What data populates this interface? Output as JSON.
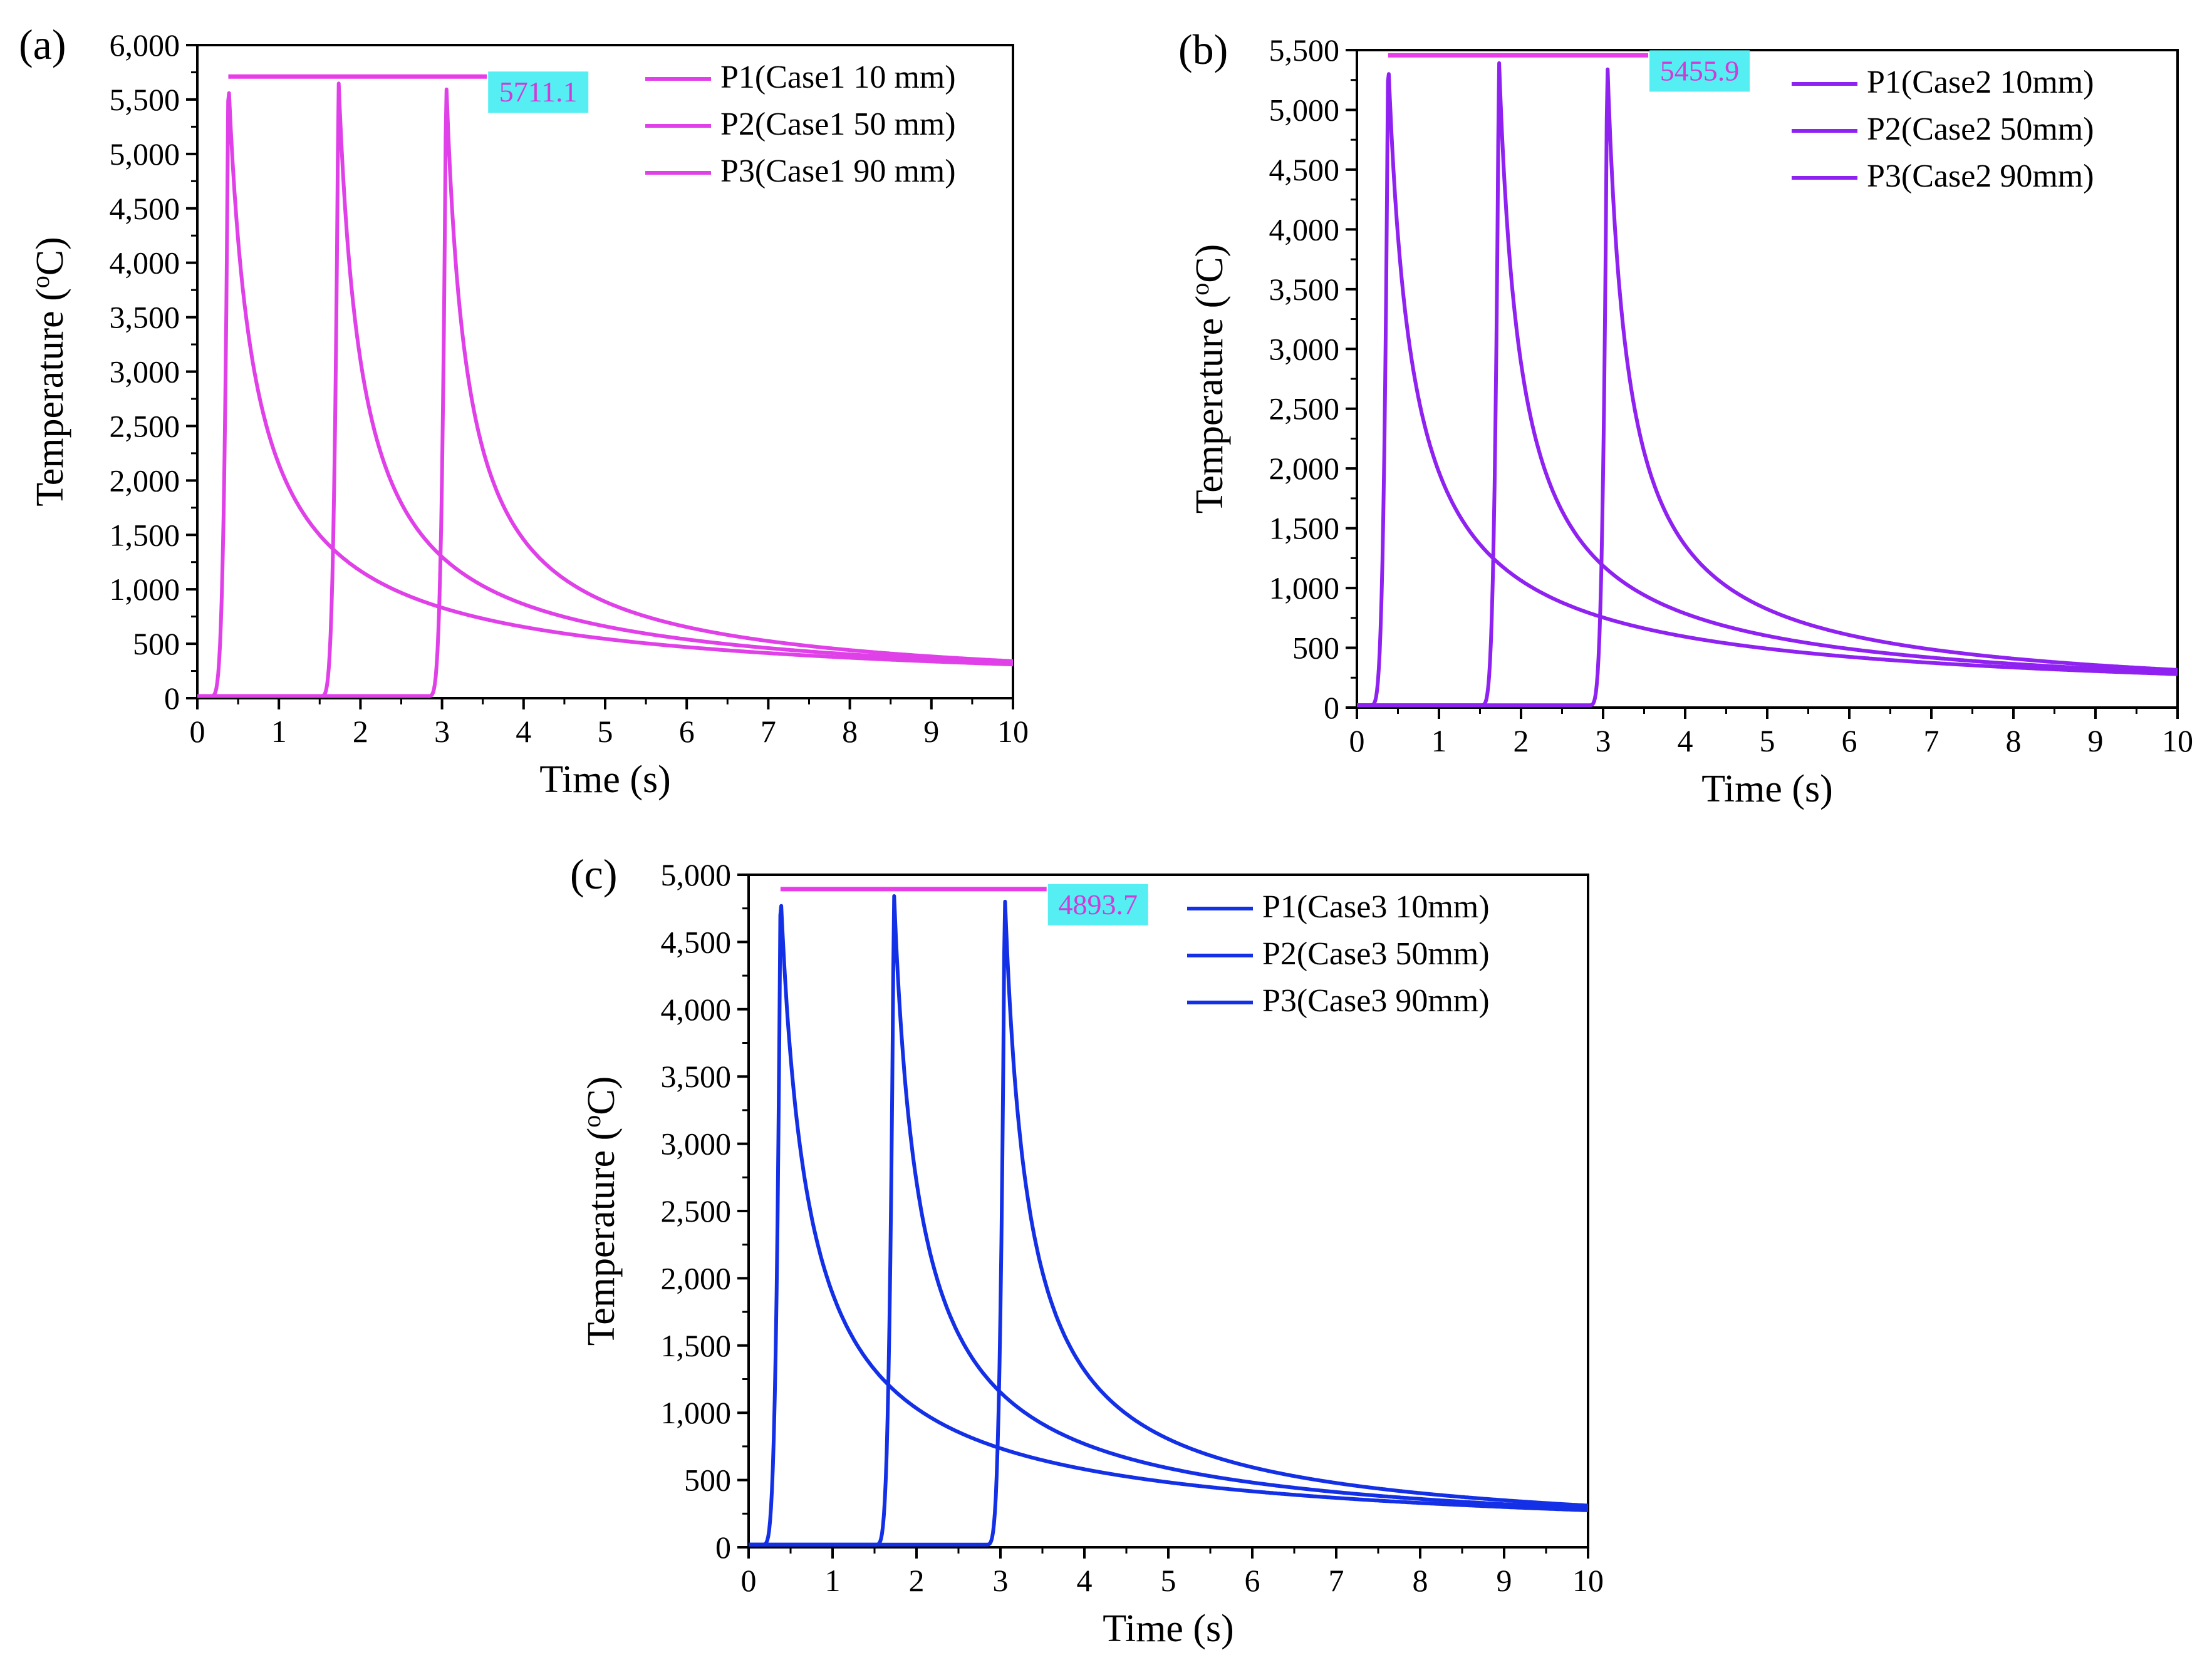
{
  "chart_data": [
    {
      "type": "line",
      "panel_label": "(a)",
      "xlabel": "Time (s)",
      "ylabel_main": "Temperature (",
      "ylabel_sup": "o",
      "ylabel_tail": "C)",
      "xlim": [
        0,
        10
      ],
      "ylim": [
        0,
        6000
      ],
      "xticks": [
        0,
        1,
        2,
        3,
        4,
        5,
        6,
        7,
        8,
        9,
        10
      ],
      "xtick_labels": [
        "0",
        "1",
        "2",
        "3",
        "4",
        "5",
        "6",
        "7",
        "8",
        "9",
        "10"
      ],
      "yticks": [
        0,
        500,
        1000,
        1500,
        2000,
        2500,
        3000,
        3500,
        4000,
        4500,
        5000,
        5500,
        6000
      ],
      "ytick_labels": [
        "0",
        "500",
        "1,000",
        "1,500",
        "2,000",
        "2,500",
        "3,000",
        "3,500",
        "4,000",
        "4,500",
        "5,000",
        "5,500",
        "6,000"
      ],
      "color": "#e040e8",
      "peak_value": 5711.1,
      "peak_label": "5711.1",
      "peak_line_x": [
        0.38,
        3.55
      ],
      "legend_position": "top-right",
      "series": [
        {
          "name": "P1(Case1 10 mm)",
          "peak_time": 0.38,
          "peak": 5711.1,
          "end_value": 310
        },
        {
          "name": "P2(Case1 50 mm)",
          "peak_time": 1.73,
          "peak": 5711.1,
          "end_value": 325
        },
        {
          "name": "P3(Case1 90 mm)",
          "peak_time": 3.05,
          "peak": 5711.1,
          "end_value": 340
        }
      ]
    },
    {
      "type": "line",
      "panel_label": "(b)",
      "xlabel": "Time (s)",
      "ylabel_main": "Temperature (",
      "ylabel_sup": "o",
      "ylabel_tail": "C)",
      "xlim": [
        0,
        10
      ],
      "ylim": [
        0,
        5500
      ],
      "xticks": [
        0,
        1,
        2,
        3,
        4,
        5,
        6,
        7,
        8,
        9,
        10
      ],
      "xtick_labels": [
        "0",
        "1",
        "2",
        "3",
        "4",
        "5",
        "6",
        "7",
        "8",
        "9",
        "10"
      ],
      "yticks": [
        0,
        500,
        1000,
        1500,
        2000,
        2500,
        3000,
        3500,
        4000,
        4500,
        5000,
        5500
      ],
      "ytick_labels": [
        "0",
        "500",
        "1,000",
        "1,500",
        "2,000",
        "2,500",
        "3,000",
        "3,500",
        "4,000",
        "4,500",
        "5,000",
        "5,500"
      ],
      "color": "#8f22f0",
      "peak_value": 5455.9,
      "peak_label": "5455.9",
      "peak_line_x": [
        0.38,
        3.55
      ],
      "legend_position": "top-right",
      "series": [
        {
          "name": "P1(Case2 10mm)",
          "peak_time": 0.38,
          "peak": 5455.9,
          "end_value": 280
        },
        {
          "name": "P2(Case2 50mm)",
          "peak_time": 1.73,
          "peak": 5455.9,
          "end_value": 295
        },
        {
          "name": "P3(Case2 90mm)",
          "peak_time": 3.05,
          "peak": 5455.9,
          "end_value": 315
        }
      ]
    },
    {
      "type": "line",
      "panel_label": "(c)",
      "xlabel": "Time (s)",
      "ylabel_main": "Temperature (",
      "ylabel_sup": "o",
      "ylabel_tail": "C)",
      "xlim": [
        0,
        10
      ],
      "ylim": [
        0,
        5000
      ],
      "xticks": [
        0,
        1,
        2,
        3,
        4,
        5,
        6,
        7,
        8,
        9,
        10
      ],
      "xtick_labels": [
        "0",
        "1",
        "2",
        "3",
        "4",
        "5",
        "6",
        "7",
        "8",
        "9",
        "10"
      ],
      "yticks": [
        0,
        500,
        1000,
        1500,
        2000,
        2500,
        3000,
        3500,
        4000,
        4500,
        5000
      ],
      "ytick_labels": [
        "0",
        "500",
        "1,000",
        "1,500",
        "2,000",
        "2,500",
        "3,000",
        "3,500",
        "4,000",
        "4,500",
        "5,000"
      ],
      "color": "#1330e6",
      "peak_value": 4893.7,
      "peak_label": "4893.7",
      "peak_line_x": [
        0.38,
        3.55
      ],
      "legend_position": "top-right",
      "series": [
        {
          "name": "P1(Case3 10mm)",
          "peak_time": 0.38,
          "peak": 4893.7,
          "end_value": 275
        },
        {
          "name": "P2(Case3 50mm)",
          "peak_time": 1.73,
          "peak": 4893.7,
          "end_value": 290
        },
        {
          "name": "P3(Case3 90mm)",
          "peak_time": 3.05,
          "peak": 4893.7,
          "end_value": 310
        }
      ]
    }
  ],
  "style": {
    "peak_line_color": "#e83ce8",
    "callout_fill": "#55eef3",
    "callout_text_color": "#d13ad6"
  }
}
